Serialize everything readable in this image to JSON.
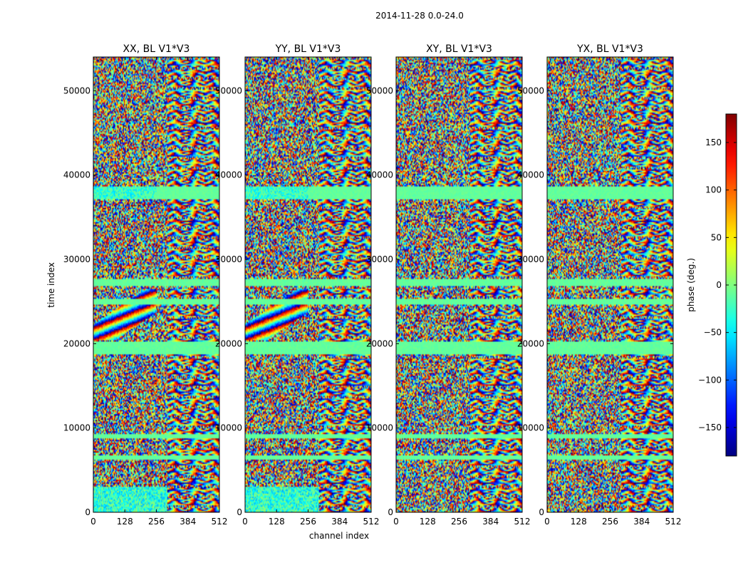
{
  "figure_title": "2014-11-28 0.0-24.0",
  "chart_data": {
    "type": "heatmap",
    "title": "2014-11-28 0.0-24.0",
    "xlabel": "channel index",
    "ylabel": "time index",
    "xlim": [
      0,
      512
    ],
    "ylim": [
      0,
      54000
    ],
    "x_ticks": [
      0,
      128,
      256,
      384,
      512
    ],
    "y_ticks": [
      0,
      10000,
      20000,
      30000,
      40000,
      50000
    ],
    "x_tick_labels": [
      "0",
      "128",
      "256",
      "384",
      "512"
    ],
    "y_tick_labels": [
      "0",
      "10000",
      "20000",
      "30000",
      "40000",
      "50000"
    ],
    "panels": [
      {
        "title": "XX, BL V1*V3",
        "polarization": "XX",
        "baseline": "V1*V3"
      },
      {
        "title": "YY, BL V1*V3",
        "polarization": "YY",
        "baseline": "V1*V3"
      },
      {
        "title": "XY, BL V1*V3",
        "polarization": "XY",
        "baseline": "V1*V3"
      },
      {
        "title": "YX, BL V1*V3",
        "polarization": "YX",
        "baseline": "V1*V3"
      }
    ],
    "flagged_time_bands": [
      {
        "start": 37200,
        "end": 38700,
        "value": -10
      },
      {
        "start": 26800,
        "end": 27600,
        "value": -10
      },
      {
        "start": 24600,
        "end": 25300,
        "value": -10
      },
      {
        "start": 18800,
        "end": 20200,
        "value": -10
      },
      {
        "start": 8800,
        "end": 9200,
        "value": -10
      },
      {
        "start": 6300,
        "end": 6700,
        "value": -10
      }
    ],
    "colorbar": {
      "label": "phase (deg.)",
      "range": [
        -180,
        180
      ],
      "ticks": [
        -150,
        -100,
        -50,
        0,
        50,
        100,
        150
      ],
      "tick_labels": [
        "−150",
        "−100",
        "−50",
        "0",
        "50",
        "100",
        "150"
      ],
      "colormap": "jet"
    }
  }
}
